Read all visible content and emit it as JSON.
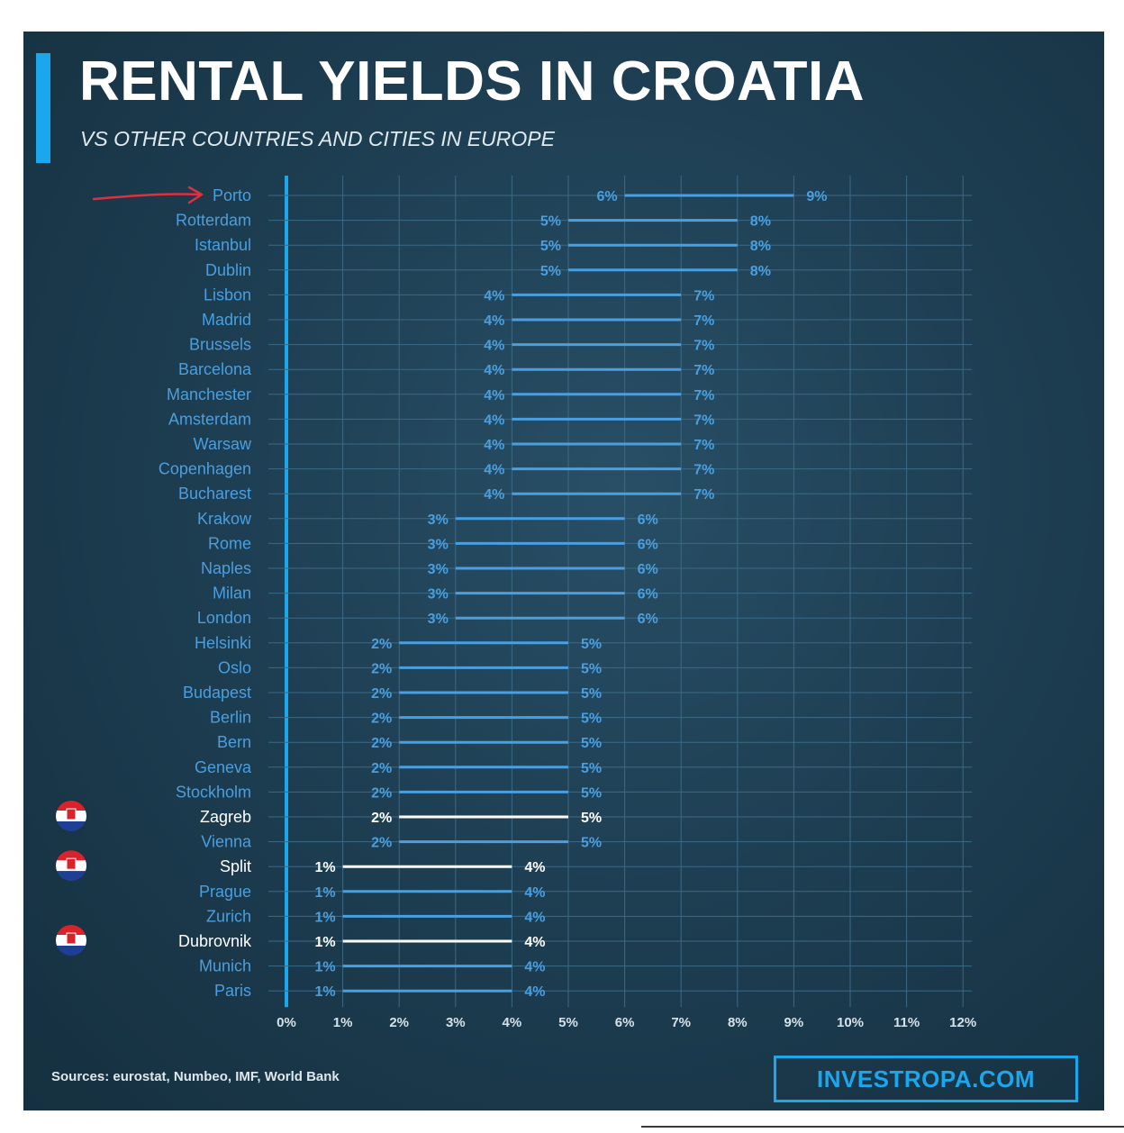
{
  "header": {
    "title": "RENTAL YIELDS IN CROATIA",
    "subtitle": "VS OTHER COUNTRIES AND CITIES IN EUROPE"
  },
  "footer": {
    "sources": "Sources: eurostat, Numbeo, IMF, World Bank",
    "brand": "INVESTROPA.COM"
  },
  "colors": {
    "background": "#1d3d51",
    "accent": "#1aa7ee",
    "range_default": "#4a9fe0",
    "range_highlight": "#ffffff",
    "annotation_arrow": "#e03040"
  },
  "chart_data": {
    "type": "range-bar",
    "orientation": "horizontal",
    "xlim": [
      0,
      12
    ],
    "x_ticks": [
      "0%",
      "1%",
      "2%",
      "3%",
      "4%",
      "5%",
      "6%",
      "7%",
      "8%",
      "9%",
      "10%",
      "11%",
      "12%"
    ],
    "grid": true,
    "annotation": "red arrow pointing at Porto",
    "rows": [
      {
        "city": "Porto",
        "low": 6,
        "high": 9,
        "low_label": "6%",
        "high_label": "9%",
        "highlight": false,
        "flag": ""
      },
      {
        "city": "Rotterdam",
        "low": 5,
        "high": 8,
        "low_label": "5%",
        "high_label": "8%",
        "highlight": false,
        "flag": ""
      },
      {
        "city": "Istanbul",
        "low": 5,
        "high": 8,
        "low_label": "5%",
        "high_label": "8%",
        "highlight": false,
        "flag": ""
      },
      {
        "city": "Dublin",
        "low": 5,
        "high": 8,
        "low_label": "5%",
        "high_label": "8%",
        "highlight": false,
        "flag": ""
      },
      {
        "city": "Lisbon",
        "low": 4,
        "high": 7,
        "low_label": "4%",
        "high_label": "7%",
        "highlight": false,
        "flag": ""
      },
      {
        "city": "Madrid",
        "low": 4,
        "high": 7,
        "low_label": "4%",
        "high_label": "7%",
        "highlight": false,
        "flag": ""
      },
      {
        "city": "Brussels",
        "low": 4,
        "high": 7,
        "low_label": "4%",
        "high_label": "7%",
        "highlight": false,
        "flag": ""
      },
      {
        "city": "Barcelona",
        "low": 4,
        "high": 7,
        "low_label": "4%",
        "high_label": "7%",
        "highlight": false,
        "flag": ""
      },
      {
        "city": "Manchester",
        "low": 4,
        "high": 7,
        "low_label": "4%",
        "high_label": "7%",
        "highlight": false,
        "flag": ""
      },
      {
        "city": "Amsterdam",
        "low": 4,
        "high": 7,
        "low_label": "4%",
        "high_label": "7%",
        "highlight": false,
        "flag": ""
      },
      {
        "city": "Warsaw",
        "low": 4,
        "high": 7,
        "low_label": "4%",
        "high_label": "7%",
        "highlight": false,
        "flag": ""
      },
      {
        "city": "Copenhagen",
        "low": 4,
        "high": 7,
        "low_label": "4%",
        "high_label": "7%",
        "highlight": false,
        "flag": ""
      },
      {
        "city": "Bucharest",
        "low": 4,
        "high": 7,
        "low_label": "4%",
        "high_label": "7%",
        "highlight": false,
        "flag": ""
      },
      {
        "city": "Krakow",
        "low": 3,
        "high": 6,
        "low_label": "3%",
        "high_label": "6%",
        "highlight": false,
        "flag": ""
      },
      {
        "city": "Rome",
        "low": 3,
        "high": 6,
        "low_label": "3%",
        "high_label": "6%",
        "highlight": false,
        "flag": ""
      },
      {
        "city": "Naples",
        "low": 3,
        "high": 6,
        "low_label": "3%",
        "high_label": "6%",
        "highlight": false,
        "flag": ""
      },
      {
        "city": "Milan",
        "low": 3,
        "high": 6,
        "low_label": "3%",
        "high_label": "6%",
        "highlight": false,
        "flag": ""
      },
      {
        "city": "London",
        "low": 3,
        "high": 6,
        "low_label": "3%",
        "high_label": "6%",
        "highlight": false,
        "flag": ""
      },
      {
        "city": "Helsinki",
        "low": 2,
        "high": 5,
        "low_label": "2%",
        "high_label": "5%",
        "highlight": false,
        "flag": ""
      },
      {
        "city": "Oslo",
        "low": 2,
        "high": 5,
        "low_label": "2%",
        "high_label": "5%",
        "highlight": false,
        "flag": ""
      },
      {
        "city": "Budapest",
        "low": 2,
        "high": 5,
        "low_label": "2%",
        "high_label": "5%",
        "highlight": false,
        "flag": ""
      },
      {
        "city": "Berlin",
        "low": 2,
        "high": 5,
        "low_label": "2%",
        "high_label": "5%",
        "highlight": false,
        "flag": ""
      },
      {
        "city": "Bern",
        "low": 2,
        "high": 5,
        "low_label": "2%",
        "high_label": "5%",
        "highlight": false,
        "flag": ""
      },
      {
        "city": "Geneva",
        "low": 2,
        "high": 5,
        "low_label": "2%",
        "high_label": "5%",
        "highlight": false,
        "flag": ""
      },
      {
        "city": "Stockholm",
        "low": 2,
        "high": 5,
        "low_label": "2%",
        "high_label": "5%",
        "highlight": false,
        "flag": ""
      },
      {
        "city": "Zagreb",
        "low": 2,
        "high": 5,
        "low_label": "2%",
        "high_label": "5%",
        "highlight": true,
        "flag": "croatia-flag-icon"
      },
      {
        "city": "Vienna",
        "low": 2,
        "high": 5,
        "low_label": "2%",
        "high_label": "5%",
        "highlight": false,
        "flag": ""
      },
      {
        "city": "Split",
        "low": 1,
        "high": 4,
        "low_label": "1%",
        "high_label": "4%",
        "highlight": true,
        "flag": "croatia-flag-icon"
      },
      {
        "city": "Prague",
        "low": 1,
        "high": 4,
        "low_label": "1%",
        "high_label": "4%",
        "highlight": false,
        "flag": ""
      },
      {
        "city": "Zurich",
        "low": 1,
        "high": 4,
        "low_label": "1%",
        "high_label": "4%",
        "highlight": false,
        "flag": ""
      },
      {
        "city": "Dubrovnik",
        "low": 1,
        "high": 4,
        "low_label": "1%",
        "high_label": "4%",
        "highlight": true,
        "flag": "croatia-flag-icon"
      },
      {
        "city": "Munich",
        "low": 1,
        "high": 4,
        "low_label": "1%",
        "high_label": "4%",
        "highlight": false,
        "flag": ""
      },
      {
        "city": "Paris",
        "low": 1,
        "high": 4,
        "low_label": "1%",
        "high_label": "4%",
        "highlight": false,
        "flag": ""
      }
    ]
  }
}
